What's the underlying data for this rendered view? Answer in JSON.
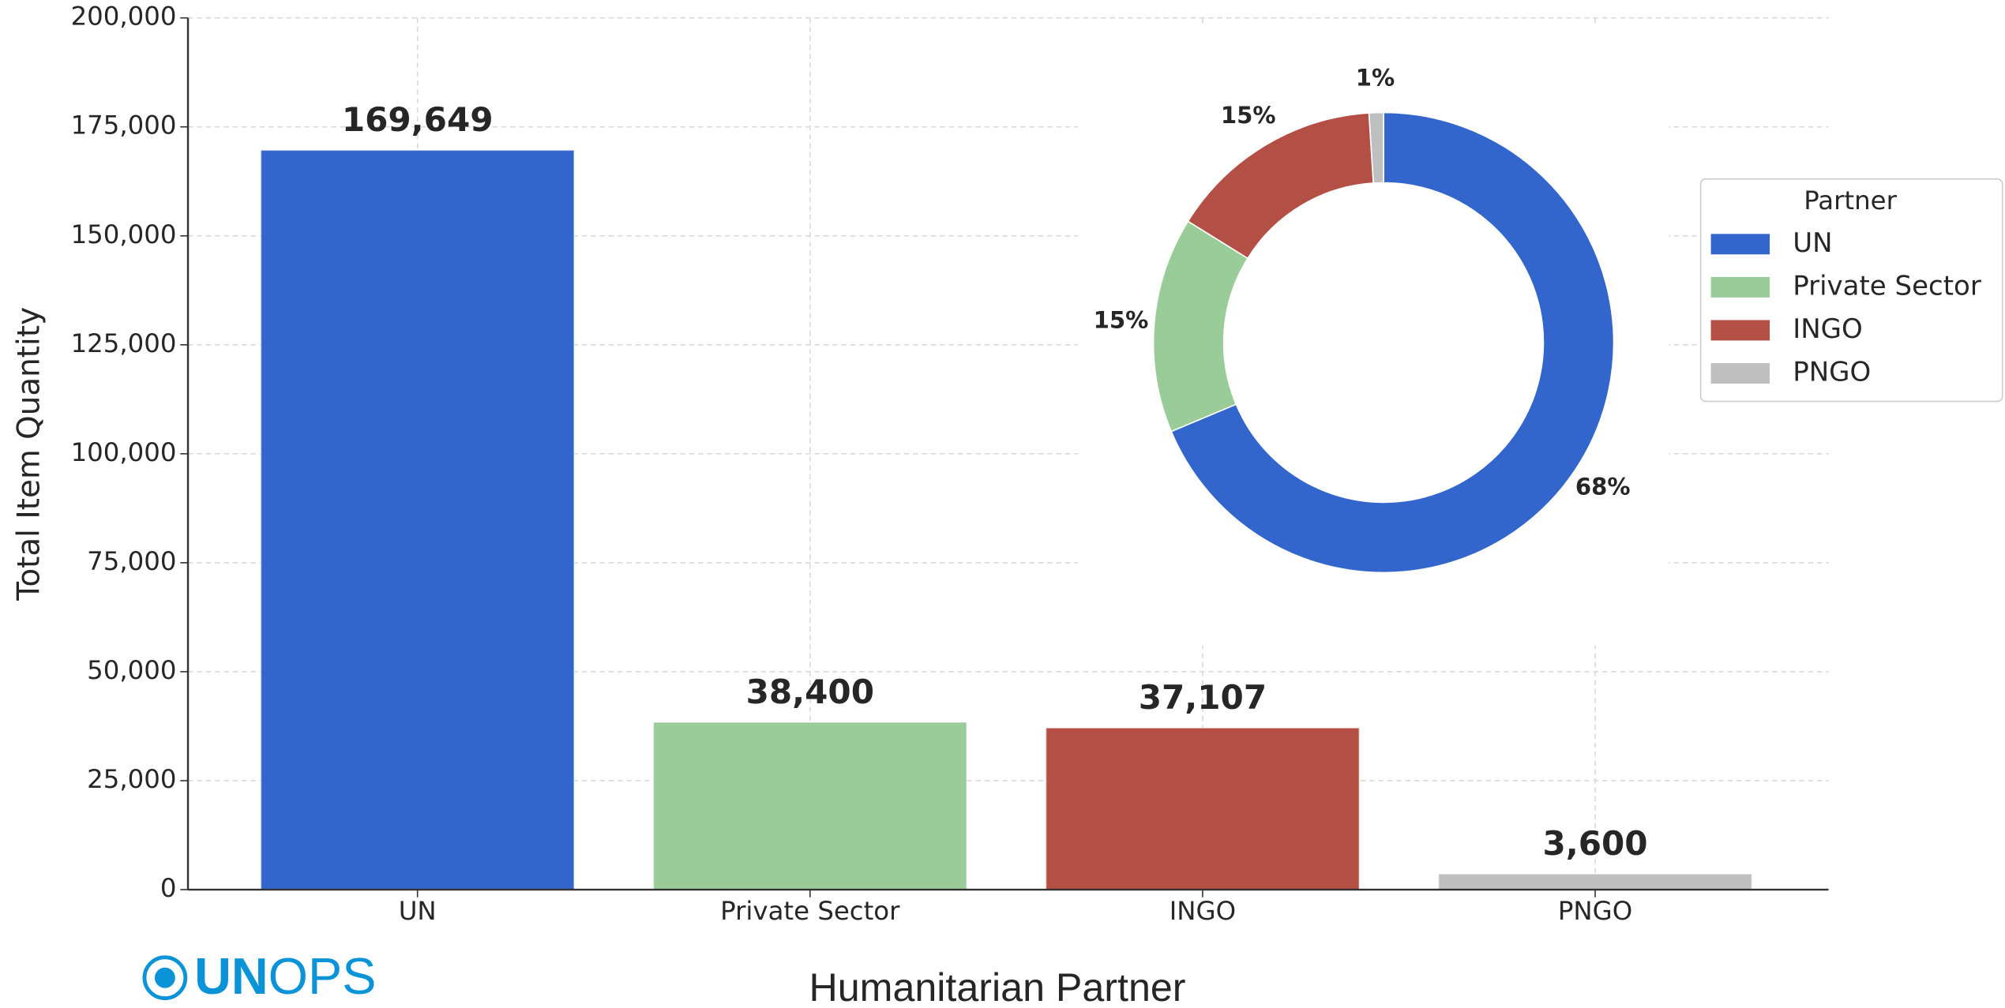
{
  "chart_data": [
    {
      "type": "bar",
      "ylabel": "Total Item Quantity",
      "xlabel": "Humanitarian Partner",
      "categories": [
        "UN",
        "Private Sector",
        "INGO",
        "PNGO"
      ],
      "values": [
        169649,
        38400,
        37107,
        3600
      ],
      "value_labels": [
        "169,649",
        "38,400",
        "37,107",
        "3,600"
      ],
      "colors": [
        "#3366cc",
        "#99cc99",
        "#b34f45",
        "#bfbfbf"
      ],
      "ylim": [
        0,
        200000
      ],
      "yticks": [
        0,
        {
          "value": 25000,
          "label": "25,000"
        },
        {
          "value": 50000,
          "label": "50,000"
        },
        {
          "value": 75000,
          "label": "75,000"
        },
        {
          "value": 100000,
          "label": "100,000"
        },
        {
          "value": 125000,
          "label": "125,000"
        },
        {
          "value": 150000,
          "label": "150,000"
        },
        {
          "value": 175000,
          "label": "175,000"
        },
        {
          "value": 200000,
          "label": "200,000"
        }
      ],
      "grid": true
    },
    {
      "type": "pie",
      "donut": true,
      "legend_title": "Partner",
      "legend": "right",
      "categories": [
        "UN",
        "Private Sector",
        "INGO",
        "PNGO"
      ],
      "values": [
        68,
        15,
        15,
        1
      ],
      "value_labels": [
        "68%",
        "15%",
        "15%",
        "1%"
      ],
      "colors": [
        "#3366cc",
        "#99cc99",
        "#b34f45",
        "#bfbfbf"
      ]
    }
  ],
  "logo": [
    "UN",
    "OPS"
  ]
}
